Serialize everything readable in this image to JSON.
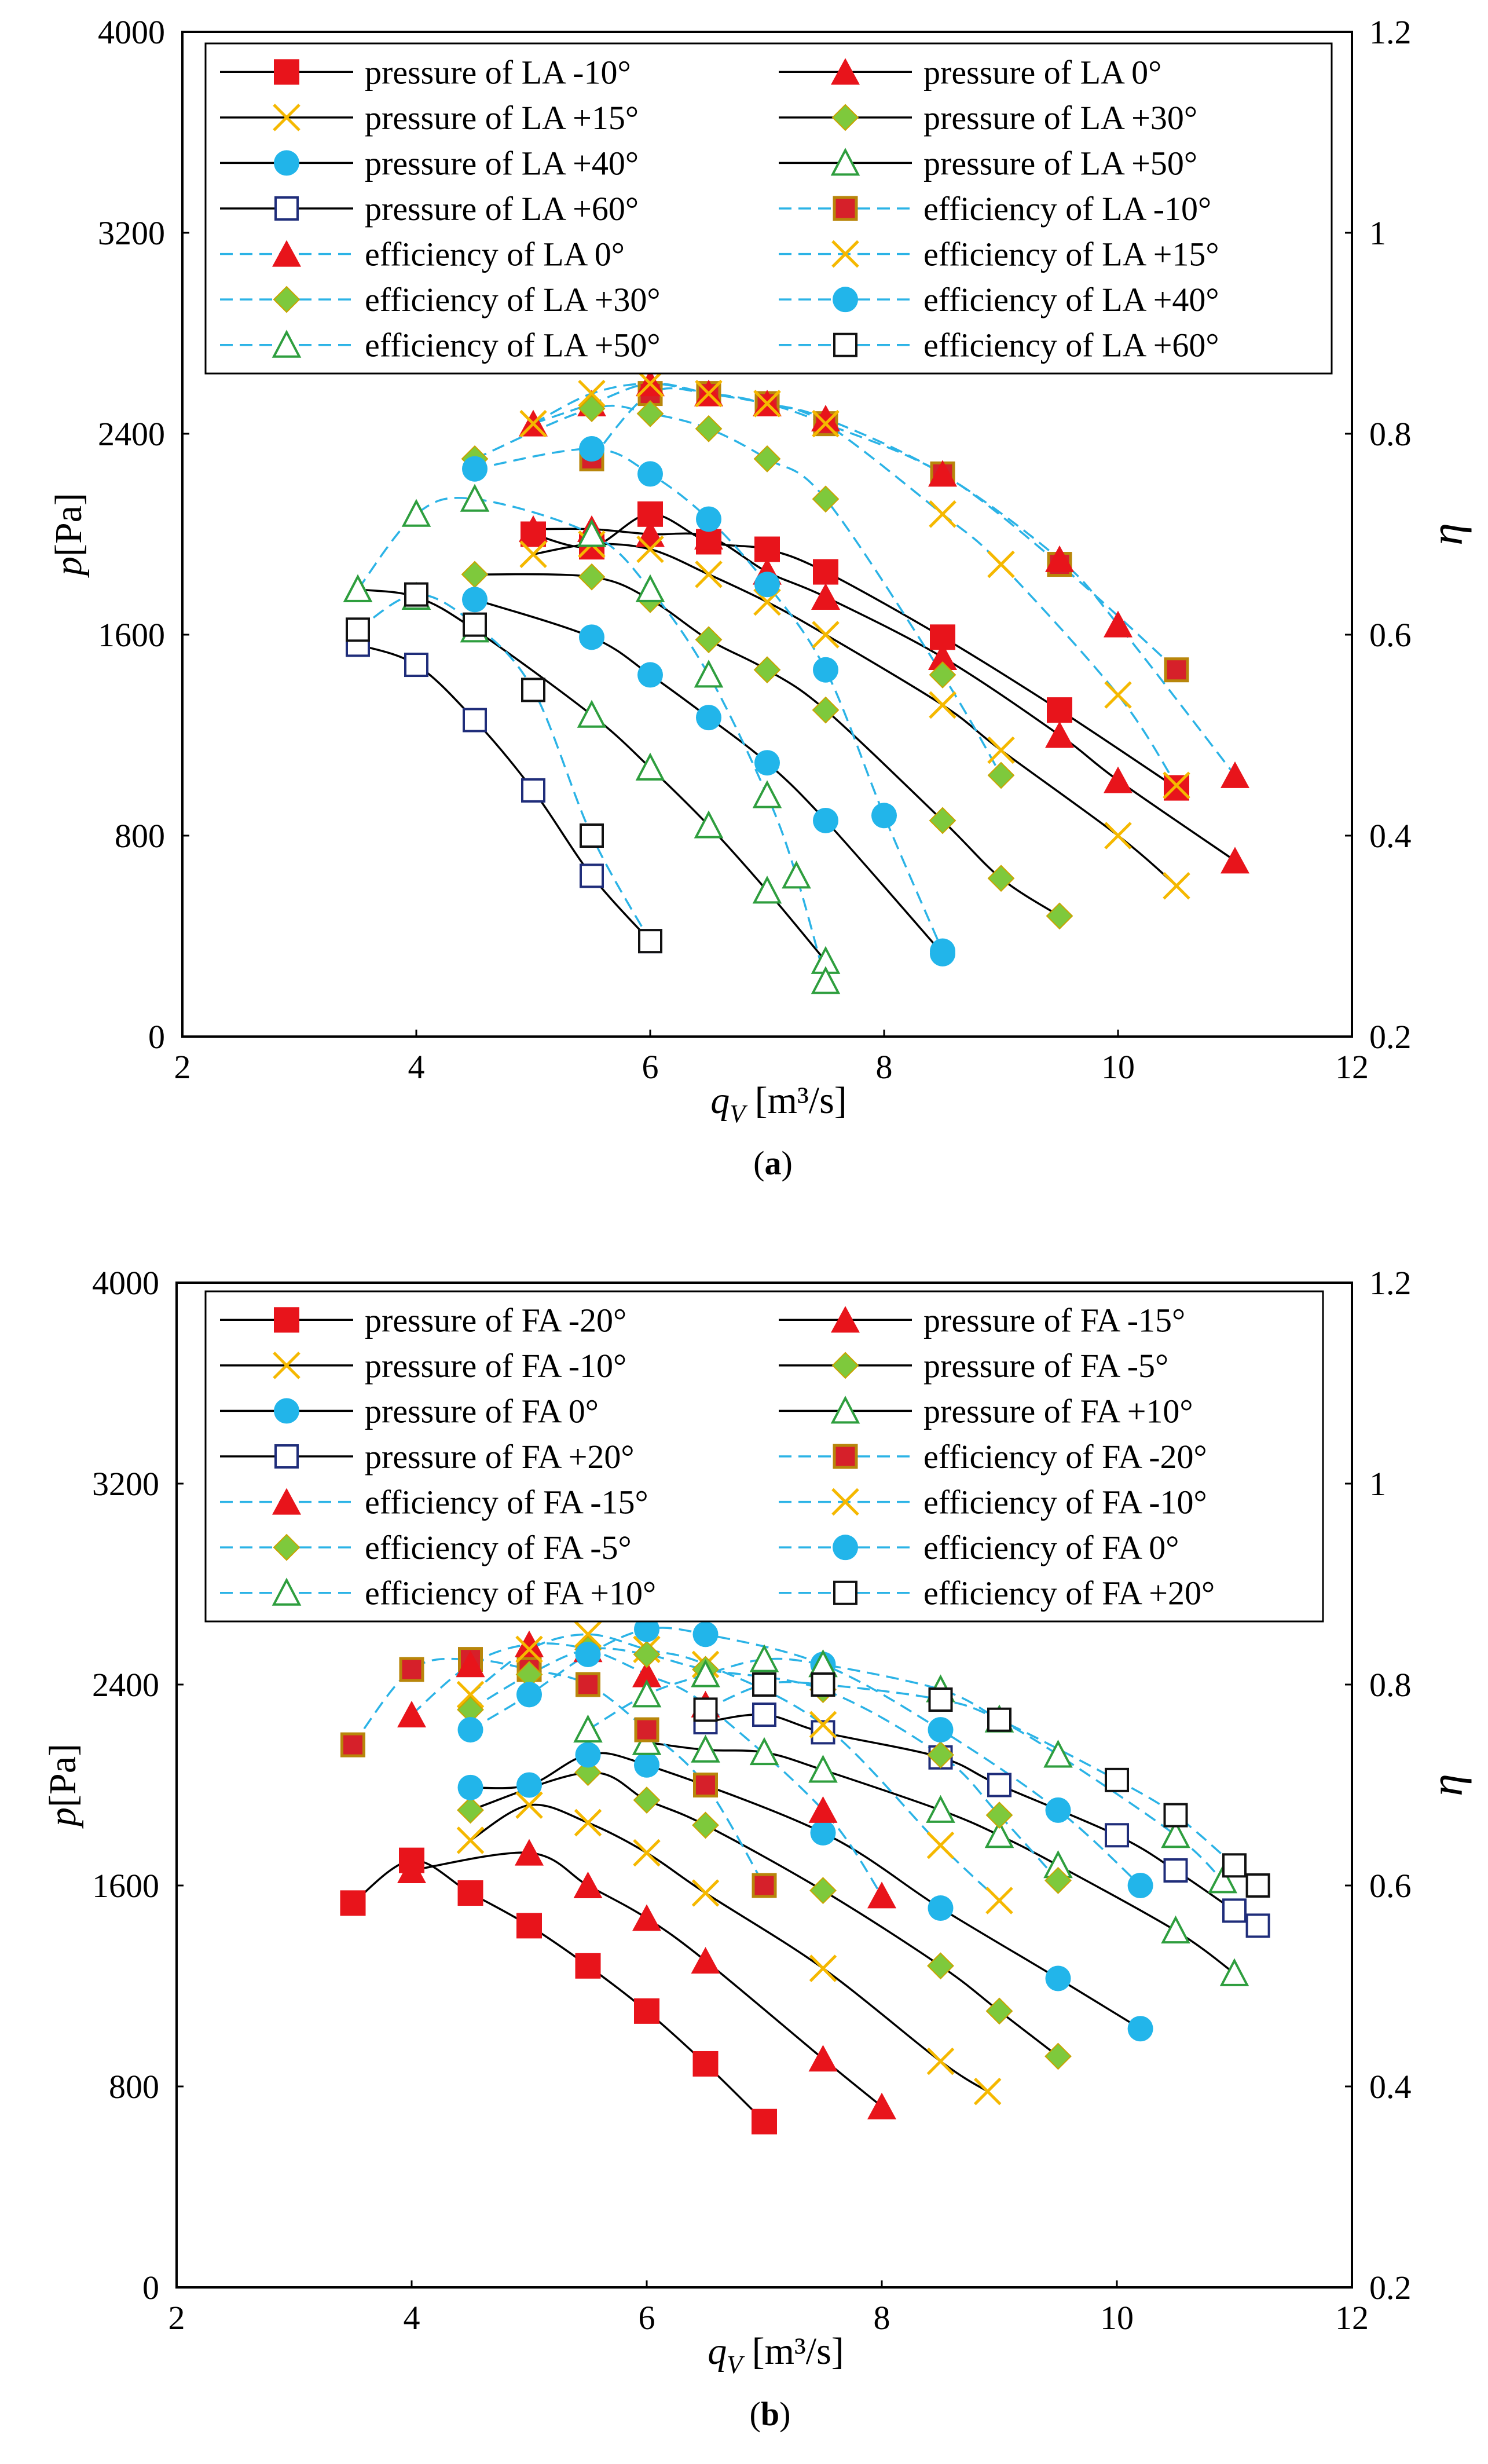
{
  "chart_data": [
    {
      "type": "line",
      "panel_label": "(a)",
      "xlabel_main": "q",
      "xlabel_sub": "V",
      "xlabel_unit": " [m³/s]",
      "ylabel": "p[Pa]",
      "y2label": "η",
      "xlim": [
        2,
        12
      ],
      "ylim": [
        0,
        4000
      ],
      "y2lim": [
        0.2,
        1.2
      ],
      "xticks": [
        "2",
        "4",
        "6",
        "8",
        "10",
        "12"
      ],
      "yticks": [
        "0",
        "800",
        "1600",
        "2400",
        "3200",
        "4000"
      ],
      "y2ticks": [
        "0.2",
        "0.4",
        "0.6",
        "0.8",
        "1",
        "1.2"
      ],
      "legend": "top, inside plot, two columns",
      "series": [
        {
          "name": "pressure of LA -10°",
          "kind": "pressure",
          "marker": "square",
          "color": "#e8141b",
          "x": [
            5.0,
            5.5,
            6.0,
            6.5,
            7.0,
            7.5,
            8.5,
            9.5,
            10.5
          ],
          "y": [
            2000,
            1950,
            2080,
            1970,
            1940,
            1850,
            1590,
            1300,
            990
          ]
        },
        {
          "name": "pressure of LA 0°",
          "kind": "pressure",
          "marker": "triangle",
          "color": "#e8141b",
          "x": [
            5.0,
            5.5,
            6.0,
            6.5,
            7.0,
            7.5,
            8.5,
            9.5,
            10.0,
            11.0
          ],
          "y": [
            2020,
            2020,
            2000,
            1990,
            1850,
            1750,
            1510,
            1200,
            1020,
            700
          ]
        },
        {
          "name": "pressure of LA +15°",
          "kind": "pressure",
          "marker": "x",
          "color": "#f5b800",
          "x": [
            5.0,
            5.5,
            6.0,
            6.5,
            7.0,
            7.5,
            8.5,
            9.0,
            10.0,
            10.5
          ],
          "y": [
            1920,
            1960,
            1940,
            1840,
            1730,
            1600,
            1320,
            1140,
            800,
            600
          ]
        },
        {
          "name": "pressure of LA +30°",
          "kind": "pressure",
          "marker": "diamond",
          "color": "#7ec93c",
          "x": [
            4.5,
            5.5,
            6.0,
            6.5,
            7.0,
            7.5,
            8.5,
            9.0,
            9.5
          ],
          "y": [
            1840,
            1830,
            1740,
            1580,
            1460,
            1300,
            860,
            630,
            480
          ]
        },
        {
          "name": "pressure of LA +40°",
          "kind": "pressure",
          "marker": "circle",
          "color": "#22b5ea",
          "x": [
            4.5,
            5.5,
            6.0,
            6.5,
            7.0,
            7.5,
            8.5
          ],
          "y": [
            1740,
            1590,
            1440,
            1270,
            1090,
            860,
            330
          ]
        },
        {
          "name": "pressure of LA +50°",
          "kind": "pressure",
          "marker": "triangle-open",
          "color": "#2e9e3e",
          "x": [
            3.5,
            4.0,
            4.5,
            5.5,
            6.0,
            6.5,
            7.0,
            7.5
          ],
          "y": [
            1780,
            1750,
            1620,
            1280,
            1070,
            840,
            580,
            300
          ]
        },
        {
          "name": "pressure of LA +60°",
          "kind": "pressure",
          "marker": "square-open",
          "color": "#1f2d7a",
          "x": [
            3.5,
            4.0,
            4.5,
            5.0,
            5.5,
            6.0
          ],
          "y": [
            1560,
            1480,
            1260,
            980,
            640,
            380
          ]
        },
        {
          "name": "efficiency of LA -10°",
          "kind": "efficiency",
          "marker": "square-brown",
          "color": "#c0392b",
          "x": [
            5.5,
            6.0,
            6.5,
            7.0,
            7.5,
            8.5,
            9.5,
            10.5
          ],
          "y": [
            0.775,
            0.84,
            0.84,
            0.83,
            0.81,
            0.76,
            0.67,
            0.565
          ]
        },
        {
          "name": "efficiency of LA 0°",
          "kind": "efficiency",
          "marker": "triangle",
          "color": "#e8141b",
          "x": [
            5.0,
            5.5,
            6.0,
            6.5,
            7.0,
            7.5,
            8.5,
            9.5,
            10.0,
            11.0
          ],
          "y": [
            0.81,
            0.83,
            0.85,
            0.84,
            0.83,
            0.815,
            0.76,
            0.675,
            0.61,
            0.46
          ]
        },
        {
          "name": "efficiency of LA +15°",
          "kind": "efficiency",
          "marker": "x",
          "color": "#f5b800",
          "x": [
            5.0,
            5.5,
            6.0,
            6.5,
            7.0,
            7.5,
            8.5,
            9.0,
            10.0,
            10.5
          ],
          "y": [
            0.81,
            0.84,
            0.85,
            0.84,
            0.83,
            0.81,
            0.72,
            0.67,
            0.54,
            0.45
          ]
        },
        {
          "name": "efficiency of LA +30°",
          "kind": "efficiency",
          "marker": "diamond",
          "color": "#7ec93c",
          "x": [
            4.5,
            5.5,
            6.0,
            6.5,
            7.0,
            7.5,
            8.5,
            9.0
          ],
          "y": [
            0.775,
            0.825,
            0.82,
            0.805,
            0.775,
            0.735,
            0.56,
            0.46
          ]
        },
        {
          "name": "efficiency of LA +40°",
          "kind": "efficiency",
          "marker": "circle",
          "color": "#22b5ea",
          "x": [
            4.5,
            5.5,
            6.0,
            6.5,
            7.0,
            7.5,
            8.0,
            8.5
          ],
          "y": [
            0.765,
            0.785,
            0.76,
            0.715,
            0.65,
            0.565,
            0.42,
            0.285
          ]
        },
        {
          "name": "efficiency of LA +50°",
          "kind": "efficiency",
          "marker": "triangle-open",
          "color": "#2e9e3e",
          "x": [
            3.5,
            4.0,
            4.5,
            5.5,
            6.0,
            6.5,
            7.0,
            7.25,
            7.5
          ],
          "y": [
            0.645,
            0.72,
            0.735,
            0.7,
            0.645,
            0.56,
            0.44,
            0.36,
            0.255
          ]
        },
        {
          "name": "efficiency of LA +60°",
          "kind": "efficiency",
          "marker": "square-open",
          "color": "#111111",
          "x": [
            3.5,
            4.0,
            4.5,
            5.0,
            5.5,
            6.0
          ],
          "y": [
            0.605,
            0.64,
            0.61,
            0.545,
            0.4,
            0.295
          ]
        }
      ]
    },
    {
      "type": "line",
      "panel_label": "(b)",
      "xlabel_main": "q",
      "xlabel_sub": "V",
      "xlabel_unit": " [m³/s]",
      "ylabel": "p[Pa]",
      "y2label": "η",
      "xlim": [
        2,
        12
      ],
      "ylim": [
        0,
        4000
      ],
      "y2lim": [
        0.2,
        1.2
      ],
      "xticks": [
        "2",
        "4",
        "6",
        "8",
        "10",
        "12"
      ],
      "yticks": [
        "0",
        "800",
        "1600",
        "2400",
        "3200",
        "4000"
      ],
      "y2ticks": [
        "0.2",
        "0.4",
        "0.6",
        "0.8",
        "1",
        "1.2"
      ],
      "legend": "top, inside plot, two columns",
      "series": [
        {
          "name": "pressure of FA -20°",
          "kind": "pressure",
          "marker": "square",
          "color": "#e8141b",
          "x": [
            3.5,
            4.0,
            4.5,
            5.0,
            5.5,
            6.0,
            6.5,
            7.0
          ],
          "y": [
            1530,
            1700,
            1570,
            1440,
            1280,
            1100,
            890,
            660
          ]
        },
        {
          "name": "pressure of FA -15°",
          "kind": "pressure",
          "marker": "triangle",
          "color": "#e8141b",
          "x": [
            4.0,
            5.0,
            5.5,
            6.0,
            6.5,
            7.5,
            8.0
          ],
          "y": [
            1660,
            1730,
            1600,
            1470,
            1300,
            910,
            720
          ]
        },
        {
          "name": "pressure of FA -10°",
          "kind": "pressure",
          "marker": "x",
          "color": "#f5b800",
          "x": [
            4.5,
            5.0,
            5.5,
            6.0,
            6.5,
            7.5,
            8.5,
            8.9
          ],
          "y": [
            1780,
            1920,
            1850,
            1730,
            1570,
            1270,
            900,
            780
          ]
        },
        {
          "name": "pressure of FA -5°",
          "kind": "pressure",
          "marker": "diamond",
          "color": "#7ec93c",
          "x": [
            4.5,
            5.5,
            6.0,
            6.5,
            7.5,
            8.5,
            9.0,
            9.5
          ],
          "y": [
            1900,
            2050,
            1940,
            1840,
            1580,
            1280,
            1100,
            920
          ]
        },
        {
          "name": "pressure of FA 0°",
          "kind": "pressure",
          "marker": "circle",
          "color": "#22b5ea",
          "x": [
            4.5,
            5.0,
            5.5,
            6.0,
            7.5,
            8.5,
            9.5,
            10.2
          ],
          "y": [
            1990,
            2000,
            2120,
            2080,
            1810,
            1510,
            1230,
            1030
          ]
        },
        {
          "name": "pressure of FA +10°",
          "kind": "pressure",
          "marker": "triangle-open",
          "color": "#2e9e3e",
          "x": [
            6.0,
            6.5,
            7.0,
            7.5,
            8.5,
            9.0,
            9.5,
            10.5,
            11.0
          ],
          "y": [
            2170,
            2140,
            2130,
            2060,
            1900,
            1800,
            1680,
            1420,
            1250
          ]
        },
        {
          "name": "pressure of FA +20°",
          "kind": "pressure",
          "marker": "square-open",
          "color": "#1f2d7a",
          "x": [
            6.5,
            7.0,
            7.5,
            8.5,
            9.0,
            10.0,
            10.5,
            11.0,
            11.2
          ],
          "y": [
            2250,
            2280,
            2210,
            2110,
            2000,
            1800,
            1660,
            1500,
            1440
          ]
        },
        {
          "name": "efficiency of FA -20°",
          "kind": "efficiency",
          "marker": "square-brown",
          "color": "#c0392b",
          "x": [
            3.5,
            4.0,
            4.5,
            5.0,
            5.5,
            6.0,
            6.5,
            7.0
          ],
          "y": [
            0.74,
            0.815,
            0.825,
            0.815,
            0.8,
            0.755,
            0.7,
            0.6
          ]
        },
        {
          "name": "efficiency of FA -15°",
          "kind": "efficiency",
          "marker": "triangle",
          "color": "#e8141b",
          "x": [
            4.0,
            4.5,
            5.0,
            5.5,
            6.0,
            6.5,
            7.5,
            8.0
          ],
          "y": [
            0.77,
            0.82,
            0.84,
            0.835,
            0.81,
            0.78,
            0.675,
            0.59
          ]
        },
        {
          "name": "efficiency of FA -10°",
          "kind": "efficiency",
          "marker": "x",
          "color": "#f5b800",
          "x": [
            4.5,
            5.0,
            5.5,
            6.0,
            6.5,
            7.5,
            8.5,
            9.0
          ],
          "y": [
            0.79,
            0.835,
            0.85,
            0.835,
            0.82,
            0.76,
            0.64,
            0.585
          ]
        },
        {
          "name": "efficiency of FA -5°",
          "kind": "efficiency",
          "marker": "diamond",
          "color": "#7ec93c",
          "x": [
            4.5,
            5.0,
            5.5,
            6.0,
            6.5,
            7.5,
            8.5,
            9.0,
            9.5
          ],
          "y": [
            0.775,
            0.81,
            0.835,
            0.83,
            0.815,
            0.795,
            0.73,
            0.67,
            0.605
          ]
        },
        {
          "name": "efficiency of FA 0°",
          "kind": "efficiency",
          "marker": "circle",
          "color": "#22b5ea",
          "x": [
            4.5,
            5.0,
            5.5,
            6.0,
            6.5,
            7.5,
            8.5,
            9.5,
            10.2
          ],
          "y": [
            0.755,
            0.79,
            0.83,
            0.855,
            0.85,
            0.82,
            0.755,
            0.675,
            0.6
          ]
        },
        {
          "name": "efficiency of FA +10°",
          "kind": "efficiency",
          "marker": "triangle-open",
          "color": "#2e9e3e",
          "x": [
            5.5,
            6.0,
            6.5,
            7.0,
            7.5,
            8.5,
            9.0,
            9.5,
            10.5,
            10.9
          ],
          "y": [
            0.755,
            0.79,
            0.81,
            0.825,
            0.82,
            0.795,
            0.765,
            0.73,
            0.65,
            0.605
          ]
        },
        {
          "name": "efficiency of FA +20°",
          "kind": "efficiency",
          "marker": "square-open",
          "color": "#111111",
          "x": [
            6.5,
            7.0,
            7.5,
            8.5,
            9.0,
            10.0,
            10.5,
            11.0,
            11.2
          ],
          "y": [
            0.775,
            0.8,
            0.8,
            0.785,
            0.765,
            0.705,
            0.67,
            0.62,
            0.6
          ]
        }
      ]
    }
  ]
}
